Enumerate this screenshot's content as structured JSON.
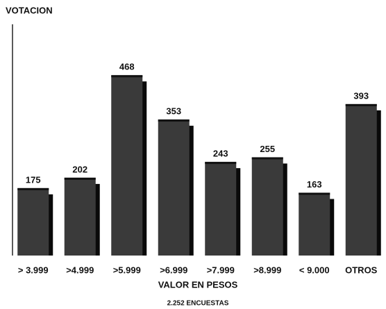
{
  "chart_data": {
    "type": "bar",
    "y_label": "VOTACION",
    "x_label": "VALOR EN PESOS",
    "note": "2.252 ENCUESTAS",
    "categories": [
      "> 3.999",
      ">4.999",
      ">5.999",
      ">6.999",
      ">7.999",
      ">8.999",
      "< 9.000",
      "OTROS"
    ],
    "values": [
      175,
      202,
      468,
      353,
      243,
      255,
      163,
      393
    ],
    "color": "#3a3a3a",
    "shadow_color": "#0a0a0a",
    "ylim": [
      0,
      600
    ]
  }
}
